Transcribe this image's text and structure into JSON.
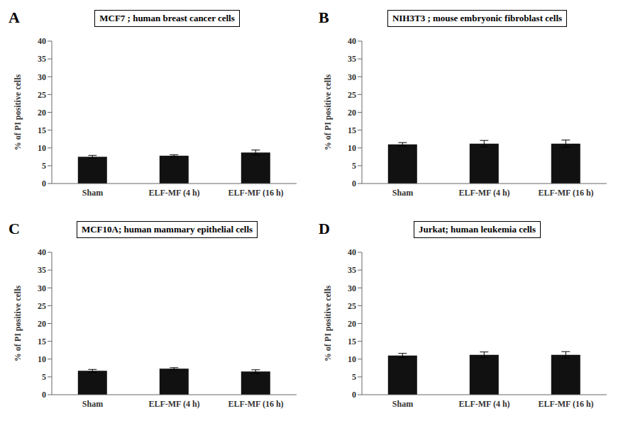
{
  "chart_data": [
    {
      "type": "bar",
      "annotation": "A",
      "title": "MCF7 ; human breast cancer cells",
      "categories": [
        "Sham",
        "ELF-MF (4 h)",
        "ELF-MF (16 h)"
      ],
      "values": [
        7.5,
        7.8,
        8.7
      ],
      "errors": [
        0.4,
        0.3,
        0.7
      ],
      "color": "#111111",
      "ylabel": "% of PI positive cells",
      "ylim": [
        0,
        40
      ],
      "yticks": [
        0,
        5,
        10,
        15,
        20,
        25,
        30,
        35,
        40
      ],
      "grid": false
    },
    {
      "type": "bar",
      "annotation": "B",
      "title": "NIH3T3 ; mouse embryonic fibroblast cells",
      "categories": [
        "Sham",
        "ELF-MF (4 h)",
        "ELF-MF (16 h)"
      ],
      "values": [
        11.0,
        11.2,
        11.2
      ],
      "errors": [
        0.5,
        0.9,
        1.0
      ],
      "color": "#111111",
      "ylabel": "% of PI positive cells",
      "ylim": [
        0,
        40
      ],
      "yticks": [
        0,
        5,
        10,
        15,
        20,
        25,
        30,
        35,
        40
      ],
      "grid": false
    },
    {
      "type": "bar",
      "annotation": "C",
      "title": "MCF10A; human mammary epithelial cells",
      "categories": [
        "Sham",
        "ELF-MF (4 h)",
        "ELF-MF (16 h)"
      ],
      "values": [
        6.7,
        7.3,
        6.5
      ],
      "errors": [
        0.4,
        0.3,
        0.5
      ],
      "color": "#111111",
      "ylabel": "% of PI positive cells",
      "ylim": [
        0,
        40
      ],
      "yticks": [
        0,
        5,
        10,
        15,
        20,
        25,
        30,
        35,
        40
      ],
      "grid": false
    },
    {
      "type": "bar",
      "annotation": "D",
      "title": "Jurkat; human leukemia cells",
      "categories": [
        "Sham",
        "ELF-MF (4 h)",
        "ELF-MF (16 h)"
      ],
      "values": [
        11.0,
        11.2,
        11.2
      ],
      "errors": [
        0.6,
        0.8,
        0.9
      ],
      "color": "#111111",
      "ylabel": "% of PI positive cells",
      "ylim": [
        0,
        40
      ],
      "yticks": [
        0,
        5,
        10,
        15,
        20,
        25,
        30,
        35,
        40
      ],
      "grid": false
    }
  ]
}
